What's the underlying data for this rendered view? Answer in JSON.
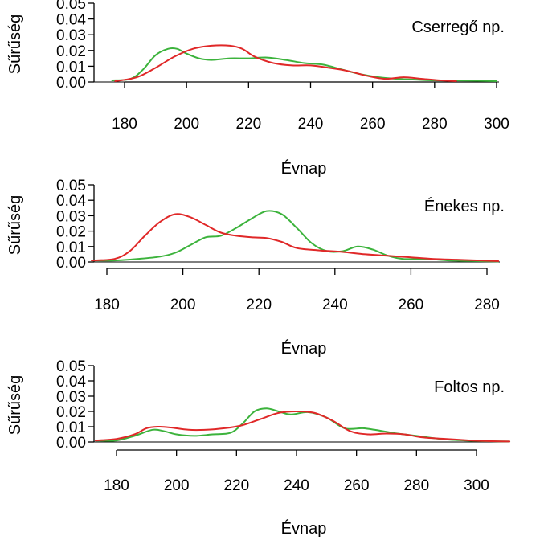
{
  "chart_data": [
    {
      "type": "line",
      "title": "Cserregő np.",
      "xlabel": "Évnap",
      "ylabel": "Sűrűség",
      "xlim": [
        176,
        300
      ],
      "ylim": [
        0,
        0.05
      ],
      "xticks": [
        180,
        200,
        220,
        240,
        260,
        280,
        300
      ],
      "yticks": [
        "0.00",
        "0.01",
        "0.02",
        "0.03",
        "0.04",
        "0.05"
      ],
      "colors": {
        "green": "#3cb33c",
        "red": "#e02828"
      },
      "series": [
        {
          "color": "green",
          "x": [
            176,
            182,
            186,
            190,
            194,
            197,
            200,
            204,
            208,
            214,
            220,
            226,
            232,
            238,
            244,
            250,
            256,
            262,
            268,
            274,
            280,
            286,
            292,
            300
          ],
          "y": [
            0.001,
            0.002,
            0.008,
            0.017,
            0.021,
            0.021,
            0.018,
            0.015,
            0.014,
            0.015,
            0.015,
            0.0155,
            0.014,
            0.012,
            0.011,
            0.008,
            0.005,
            0.003,
            0.002,
            0.0015,
            0.001,
            0.001,
            0.0008,
            0.0005
          ]
        },
        {
          "color": "red",
          "x": [
            177,
            184,
            190,
            196,
            202,
            208,
            214,
            218,
            222,
            228,
            234,
            240,
            246,
            252,
            258,
            264,
            270,
            276,
            282,
            287
          ],
          "y": [
            0.0005,
            0.003,
            0.009,
            0.016,
            0.021,
            0.023,
            0.023,
            0.021,
            0.016,
            0.012,
            0.0105,
            0.0105,
            0.009,
            0.007,
            0.004,
            0.002,
            0.003,
            0.002,
            0.001,
            0.0005
          ]
        }
      ]
    },
    {
      "type": "line",
      "title": "Énekes np.",
      "xlabel": "Évnap",
      "ylabel": "Sűrűség",
      "xlim": [
        176,
        284
      ],
      "ylim": [
        0,
        0.05
      ],
      "xticks": [
        180,
        200,
        220,
        240,
        260,
        280
      ],
      "yticks": [
        "0.00",
        "0.01",
        "0.02",
        "0.03",
        "0.04",
        "0.05"
      ],
      "colors": {
        "green": "#3cb33c",
        "red": "#e02828"
      },
      "series": [
        {
          "color": "green",
          "x": [
            176,
            182,
            188,
            194,
            198,
            202,
            206,
            210,
            214,
            218,
            222,
            226,
            230,
            234,
            238,
            242,
            246,
            250,
            254,
            258,
            264,
            270,
            276,
            283
          ],
          "y": [
            0.001,
            0.001,
            0.002,
            0.0035,
            0.006,
            0.011,
            0.016,
            0.017,
            0.022,
            0.028,
            0.033,
            0.031,
            0.022,
            0.012,
            0.007,
            0.007,
            0.01,
            0.008,
            0.004,
            0.002,
            0.002,
            0.001,
            0.0006,
            0.0003
          ]
        },
        {
          "color": "red",
          "x": [
            176,
            182,
            186,
            190,
            194,
            198,
            202,
            206,
            210,
            214,
            218,
            222,
            226,
            230,
            236,
            242,
            248,
            254,
            260,
            266,
            272,
            278,
            283
          ],
          "y": [
            0.001,
            0.002,
            0.007,
            0.017,
            0.026,
            0.031,
            0.029,
            0.024,
            0.019,
            0.017,
            0.016,
            0.0155,
            0.013,
            0.009,
            0.0075,
            0.0065,
            0.005,
            0.004,
            0.003,
            0.002,
            0.0015,
            0.001,
            0.0005
          ]
        }
      ]
    },
    {
      "type": "line",
      "title": "Foltos np.",
      "xlabel": "Évnap",
      "ylabel": "Sűrűség",
      "xlim": [
        173,
        311
      ],
      "ylim": [
        0,
        0.05
      ],
      "xticks": [
        180,
        200,
        220,
        240,
        260,
        280,
        300
      ],
      "yticks": [
        "0.00",
        "0.01",
        "0.02",
        "0.03",
        "0.04",
        "0.05"
      ],
      "colors": {
        "green": "#3cb33c",
        "red": "#e02828"
      },
      "series": [
        {
          "color": "green",
          "x": [
            173,
            180,
            186,
            192,
            196,
            200,
            206,
            212,
            218,
            222,
            226,
            230,
            234,
            238,
            244,
            250,
            256,
            262,
            266,
            272,
            280,
            288,
            296,
            304,
            311
          ],
          "y": [
            0.001,
            0.001,
            0.004,
            0.008,
            0.007,
            0.005,
            0.004,
            0.005,
            0.006,
            0.012,
            0.02,
            0.022,
            0.02,
            0.018,
            0.0195,
            0.016,
            0.009,
            0.009,
            0.008,
            0.006,
            0.004,
            0.002,
            0.001,
            0.0005,
            0.0003
          ]
        },
        {
          "color": "red",
          "x": [
            173,
            180,
            186,
            190,
            194,
            198,
            204,
            210,
            216,
            222,
            228,
            234,
            240,
            246,
            252,
            258,
            264,
            270,
            276,
            282,
            290,
            298,
            305,
            311
          ],
          "y": [
            0.001,
            0.002,
            0.005,
            0.009,
            0.01,
            0.0095,
            0.008,
            0.008,
            0.009,
            0.011,
            0.015,
            0.019,
            0.02,
            0.019,
            0.014,
            0.007,
            0.005,
            0.0055,
            0.005,
            0.003,
            0.002,
            0.001,
            0.0005,
            0.0003
          ]
        }
      ]
    }
  ]
}
